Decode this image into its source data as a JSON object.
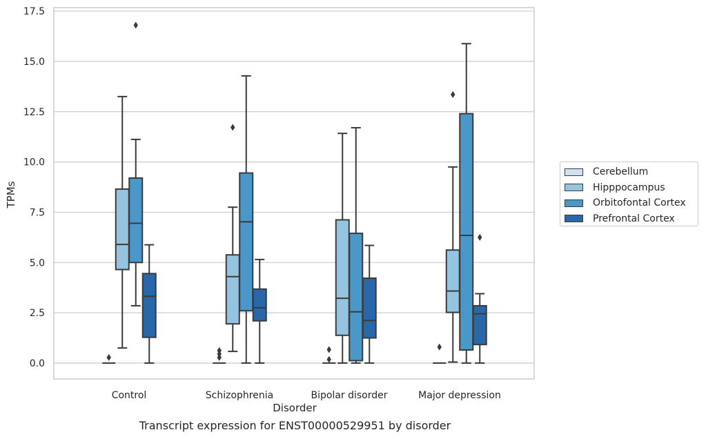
{
  "chart_data": {
    "type": "boxplot",
    "caption": "Transcript expression for ENST00000529951 by disorder",
    "xlabel": "Disorder",
    "ylabel": "TPMs",
    "ylim": [
      -0.8,
      17.6
    ],
    "yticks": [
      0.0,
      2.5,
      5.0,
      7.5,
      10.0,
      12.5,
      15.0,
      17.5
    ],
    "ytick_labels": [
      "0.0",
      "2.5",
      "5.0",
      "7.5",
      "10.0",
      "12.5",
      "15.0",
      "17.5"
    ],
    "grid": "horizontal",
    "legend_position": "right",
    "categories": [
      "Control",
      "Schizophrenia",
      "Bipolar disorder",
      "Major depression"
    ],
    "series": [
      {
        "name": "Cerebellum",
        "color": "#d0e1f2",
        "boxes": [
          {
            "whislo": 0.0,
            "q1": 0.0,
            "med": 0.0,
            "q3": 0.0,
            "whishi": 0.0,
            "fliers": [
              0.28
            ]
          },
          {
            "whislo": 0.0,
            "q1": 0.0,
            "med": 0.0,
            "q3": 0.0,
            "whishi": 0.0,
            "fliers": [
              0.28,
              0.45,
              0.62
            ]
          },
          {
            "whislo": 0.0,
            "q1": 0.0,
            "med": 0.0,
            "q3": 0.0,
            "whishi": 0.0,
            "fliers": [
              0.18,
              0.67
            ]
          },
          {
            "whislo": 0.0,
            "q1": 0.0,
            "med": 0.0,
            "q3": 0.0,
            "whishi": 0.0,
            "fliers": [
              0.8
            ]
          }
        ]
      },
      {
        "name": "Hipppocampus",
        "color": "#94c4df",
        "boxes": [
          {
            "whislo": 0.75,
            "q1": 4.65,
            "med": 5.9,
            "q3": 8.65,
            "whishi": 13.25,
            "fliers": []
          },
          {
            "whislo": 0.58,
            "q1": 1.95,
            "med": 4.3,
            "q3": 5.38,
            "whishi": 7.75,
            "fliers": [
              11.72
            ]
          },
          {
            "whislo": 0.0,
            "q1": 1.38,
            "med": 3.22,
            "q3": 7.12,
            "whishi": 11.42,
            "fliers": []
          },
          {
            "whislo": 0.05,
            "q1": 2.52,
            "med": 3.58,
            "q3": 5.62,
            "whishi": 9.75,
            "fliers": [
              13.35
            ]
          }
        ]
      },
      {
        "name": "Orbitofontal Cortex",
        "color": "#4a98c9",
        "boxes": [
          {
            "whislo": 2.85,
            "q1": 5.0,
            "med": 6.95,
            "q3": 9.2,
            "whishi": 11.12,
            "fliers": [
              16.8
            ]
          },
          {
            "whislo": 0.0,
            "q1": 2.6,
            "med": 7.02,
            "q3": 9.45,
            "whishi": 14.28,
            "fliers": []
          },
          {
            "whislo": 0.0,
            "q1": 0.12,
            "med": 2.55,
            "q3": 6.45,
            "whishi": 11.7,
            "fliers": []
          },
          {
            "whislo": 0.0,
            "q1": 0.65,
            "med": 6.35,
            "q3": 12.4,
            "whishi": 15.88,
            "fliers": []
          }
        ]
      },
      {
        "name": "Prefrontal Cortex",
        "color": "#2967a8",
        "boxes": [
          {
            "whislo": 0.0,
            "q1": 1.28,
            "med": 3.32,
            "q3": 4.45,
            "whishi": 5.88,
            "fliers": []
          },
          {
            "whislo": 0.0,
            "q1": 2.1,
            "med": 2.75,
            "q3": 3.68,
            "whishi": 5.15,
            "fliers": []
          },
          {
            "whislo": 0.0,
            "q1": 1.25,
            "med": 2.12,
            "q3": 4.22,
            "whishi": 5.85,
            "fliers": []
          },
          {
            "whislo": 0.0,
            "q1": 0.92,
            "med": 2.45,
            "q3": 2.85,
            "whishi": 3.45,
            "fliers": [
              6.25
            ]
          }
        ]
      }
    ]
  }
}
